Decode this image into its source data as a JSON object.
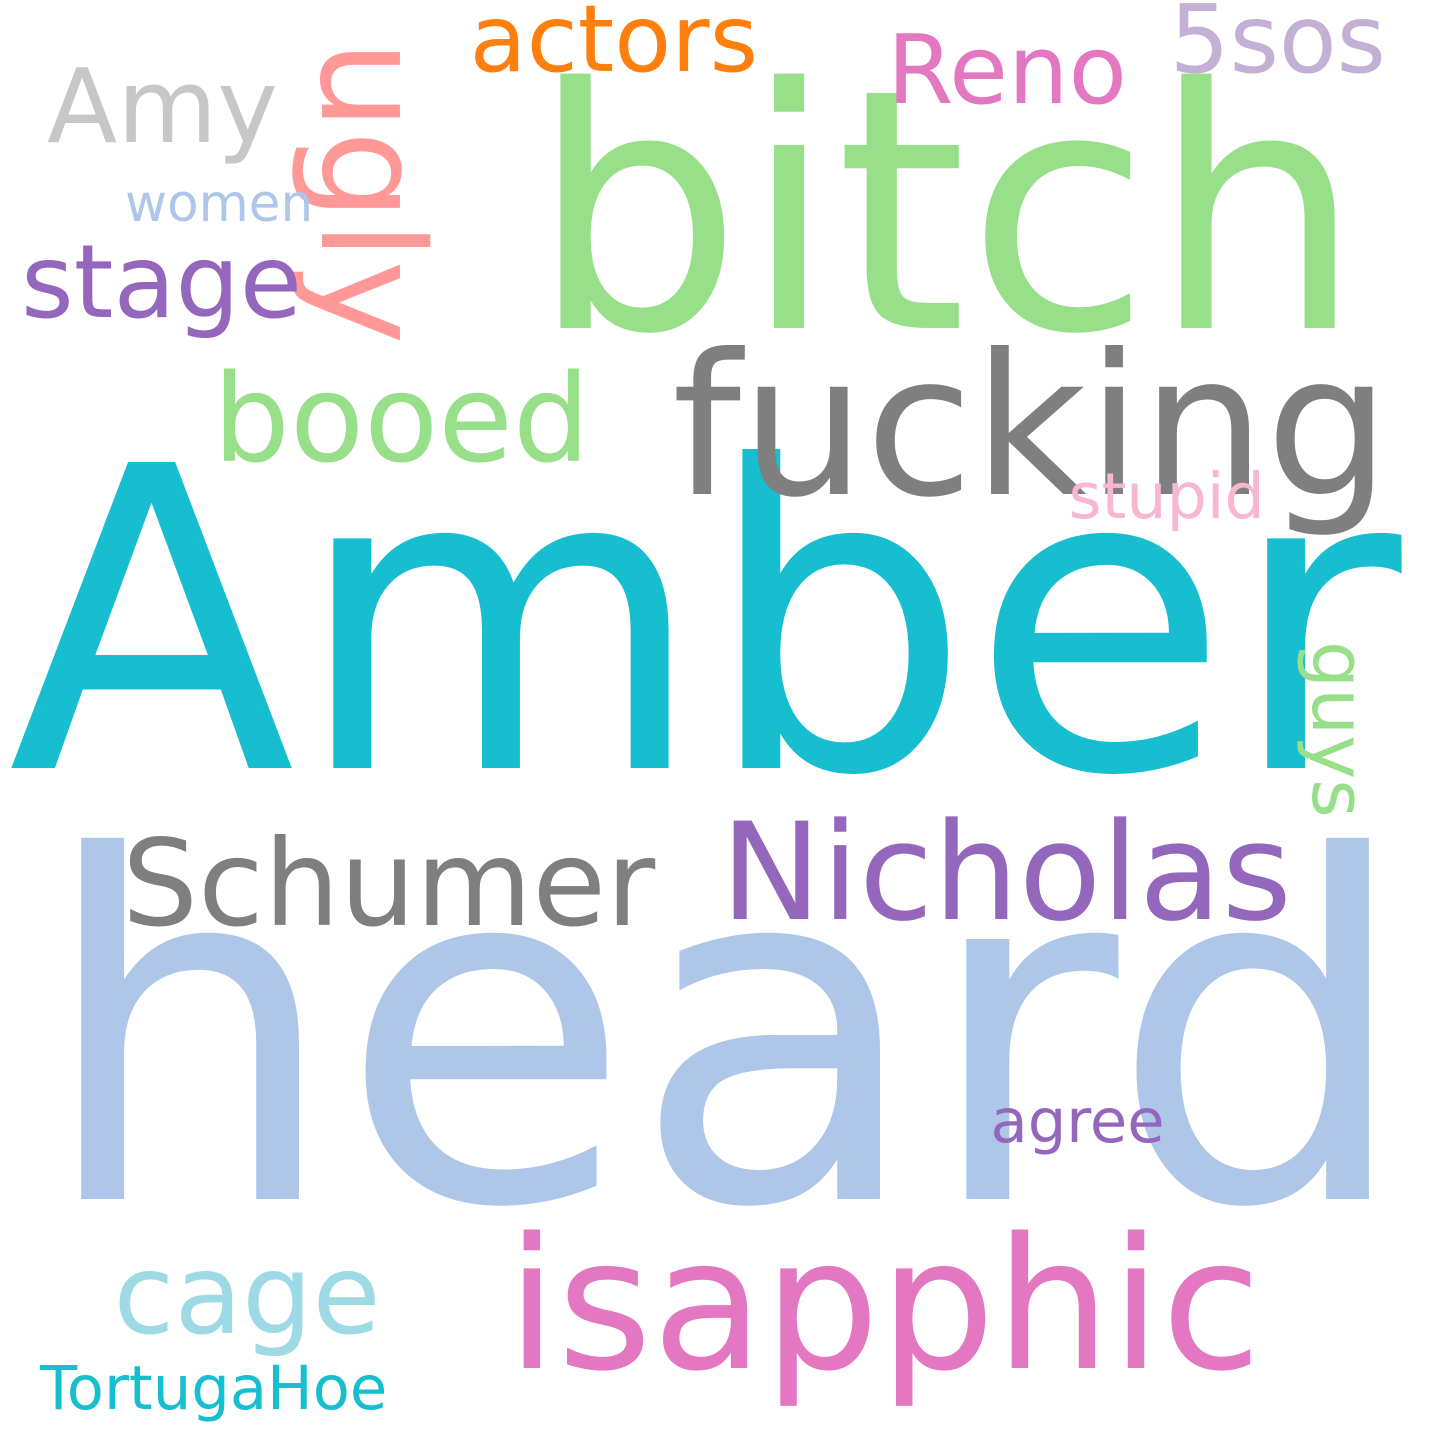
{
  "background": "#ffffff",
  "words": [
    {
      "id": "amber",
      "text": "Amber",
      "color": "#17becf",
      "orientation": "horizontal"
    },
    {
      "id": "heard",
      "text": "heard",
      "color": "#aec7e8",
      "orientation": "horizontal"
    },
    {
      "id": "bitch",
      "text": "bitch",
      "color": "#98df8a",
      "orientation": "horizontal"
    },
    {
      "id": "fucking",
      "text": "fucking",
      "color": "#7f7f7f",
      "orientation": "horizontal"
    },
    {
      "id": "isapphic",
      "text": "isapphic",
      "color": "#e377c2",
      "orientation": "horizontal"
    },
    {
      "id": "nicholas",
      "text": "Nicholas",
      "color": "#9467bd",
      "orientation": "horizontal"
    },
    {
      "id": "schumer",
      "text": "Schumer",
      "color": "#7f7f7f",
      "orientation": "horizontal"
    },
    {
      "id": "amy",
      "text": "Amy",
      "color": "#c7c7c7",
      "orientation": "horizontal"
    },
    {
      "id": "cage",
      "text": "cage",
      "color": "#9edae5",
      "orientation": "horizontal"
    },
    {
      "id": "booed",
      "text": "booed",
      "color": "#98df8a",
      "orientation": "horizontal"
    },
    {
      "id": "ugly",
      "text": "ugly",
      "color": "#ff9896",
      "orientation": "vertical"
    },
    {
      "id": "stage",
      "text": "stage",
      "color": "#9467bd",
      "orientation": "horizontal"
    },
    {
      "id": "actors",
      "text": "actors",
      "color": "#ff7f0e",
      "orientation": "horizontal"
    },
    {
      "id": "reno",
      "text": "Reno",
      "color": "#e377c2",
      "orientation": "horizontal"
    },
    {
      "id": "5sos",
      "text": "5sos",
      "color": "#c5b0d5",
      "orientation": "horizontal"
    },
    {
      "id": "guys",
      "text": "guys",
      "color": "#98df8a",
      "orientation": "vertical"
    },
    {
      "id": "tortugahoe",
      "text": "TortugaHoe",
      "color": "#17becf",
      "orientation": "horizontal"
    },
    {
      "id": "agree",
      "text": "agree",
      "color": "#9467bd",
      "orientation": "horizontal"
    },
    {
      "id": "stupid",
      "text": "stupid",
      "color": "#f7b6d2",
      "orientation": "horizontal"
    },
    {
      "id": "women",
      "text": "women",
      "color": "#aec7e8",
      "orientation": "horizontal"
    }
  ]
}
